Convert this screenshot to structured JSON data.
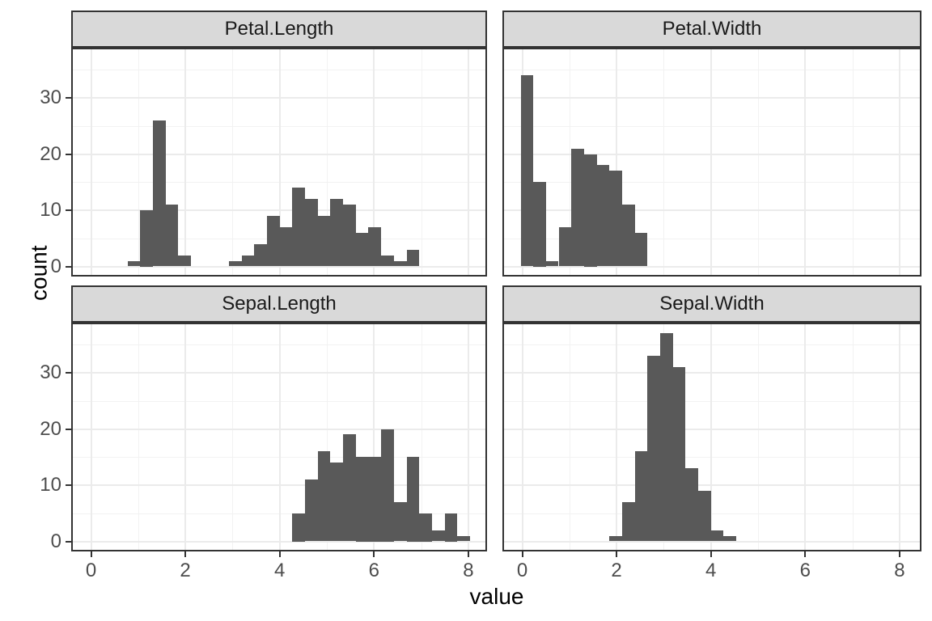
{
  "style": {
    "background": "#FFFFFF",
    "bar_fill": "#595959",
    "panel_bg": "#FFFFFF",
    "panel_border": "#333333",
    "strip_bg": "#D9D9D9",
    "strip_text": "#1A1A1A",
    "grid_major": "#EBEBEB",
    "grid_minor": "#F2F2F2",
    "axis_text": "#4D4D4D",
    "axis_title": "#000000",
    "tick_mark": "#333333"
  },
  "chart_data": {
    "type": "bar",
    "subtype": "faceted-histogram",
    "title": "",
    "xlabel": "value",
    "ylabel": "count",
    "legend": "none",
    "grid": true,
    "bin_width": 0.269,
    "x_ticks": [
      0,
      2,
      4,
      6,
      8
    ],
    "x_minor_ticks": [
      1,
      3,
      5,
      7
    ],
    "y_ticks": [
      0,
      10,
      20,
      30
    ],
    "y_minor_ticks": [
      5,
      15,
      25,
      35
    ],
    "x_domain": [
      -0.42,
      8.4
    ],
    "y_domain": [
      -1.85,
      38.85
    ],
    "facets": [
      {
        "label": "Petal.Length",
        "bins": [
          [
            0.772,
            1
          ],
          [
            1.041,
            10
          ],
          [
            1.31,
            26
          ],
          [
            1.579,
            11
          ],
          [
            1.848,
            2
          ],
          [
            2.924,
            1
          ],
          [
            3.193,
            2
          ],
          [
            3.462,
            4
          ],
          [
            3.731,
            9
          ],
          [
            4.0,
            7
          ],
          [
            4.269,
            14
          ],
          [
            4.538,
            12
          ],
          [
            4.807,
            9
          ],
          [
            5.076,
            12
          ],
          [
            5.345,
            11
          ],
          [
            5.614,
            6
          ],
          [
            5.883,
            7
          ],
          [
            6.152,
            2
          ],
          [
            6.421,
            1
          ],
          [
            6.69,
            3
          ]
        ]
      },
      {
        "label": "Petal.Width",
        "bins": [
          [
            -0.034,
            34
          ],
          [
            0.234,
            15
          ],
          [
            0.503,
            1
          ],
          [
            0.772,
            7
          ],
          [
            1.041,
            21
          ],
          [
            1.31,
            20
          ],
          [
            1.579,
            18
          ],
          [
            1.848,
            17
          ],
          [
            2.117,
            11
          ],
          [
            2.386,
            6
          ]
        ]
      },
      {
        "label": "Sepal.Length",
        "bins": [
          [
            4.269,
            5
          ],
          [
            4.538,
            11
          ],
          [
            4.807,
            16
          ],
          [
            5.076,
            14
          ],
          [
            5.345,
            19
          ],
          [
            5.614,
            15
          ],
          [
            5.883,
            15
          ],
          [
            6.152,
            20
          ],
          [
            6.421,
            7
          ],
          [
            6.69,
            15
          ],
          [
            6.959,
            5
          ],
          [
            7.228,
            2
          ],
          [
            7.497,
            5
          ],
          [
            7.766,
            1
          ]
        ]
      },
      {
        "label": "Sepal.Width",
        "bins": [
          [
            1.848,
            1
          ],
          [
            2.117,
            7
          ],
          [
            2.386,
            16
          ],
          [
            2.655,
            33
          ],
          [
            2.924,
            37
          ],
          [
            3.193,
            31
          ],
          [
            3.462,
            13
          ],
          [
            3.731,
            9
          ],
          [
            4.0,
            2
          ],
          [
            4.269,
            1
          ]
        ]
      }
    ]
  }
}
